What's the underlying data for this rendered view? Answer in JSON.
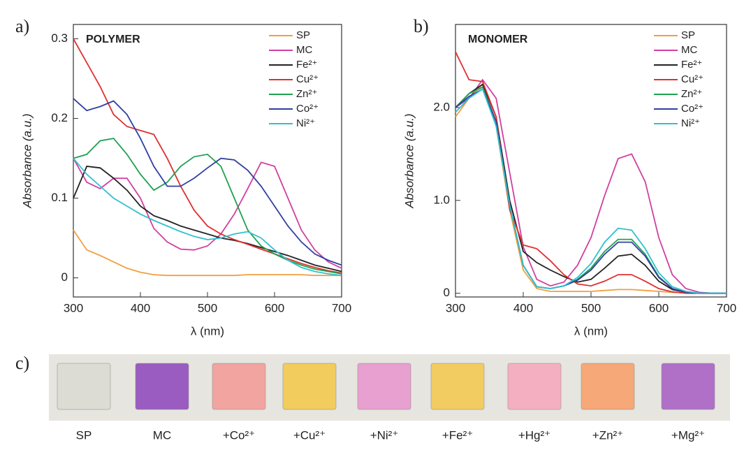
{
  "chart_data": [
    {
      "type": "line",
      "label": "a)",
      "title": "POLYMER",
      "x_label": "λ (nm)",
      "y_label": "Absorbance (a.u.)",
      "x": [
        300,
        320,
        340,
        360,
        380,
        400,
        420,
        440,
        460,
        480,
        500,
        520,
        540,
        560,
        580,
        600,
        620,
        640,
        660,
        680,
        700
      ],
      "xlim": [
        300,
        700
      ],
      "xticks": [
        300,
        400,
        500,
        600,
        700
      ],
      "ylim": [
        -0.024,
        0.318
      ],
      "yticks": [
        0,
        0.1,
        0.2,
        0.3
      ],
      "series": [
        {
          "name": "SP",
          "color": "#f0a040",
          "values": [
            0.06,
            0.035,
            0.028,
            0.02,
            0.012,
            0.007,
            0.004,
            0.003,
            0.003,
            0.003,
            0.003,
            0.003,
            0.003,
            0.004,
            0.004,
            0.004,
            0.004,
            0.004,
            0.003,
            0.003,
            0.003
          ]
        },
        {
          "name": "MC",
          "color": "#d040a0",
          "values": [
            0.15,
            0.12,
            0.112,
            0.125,
            0.125,
            0.1,
            0.062,
            0.045,
            0.036,
            0.035,
            0.04,
            0.055,
            0.08,
            0.112,
            0.145,
            0.14,
            0.1,
            0.06,
            0.035,
            0.02,
            0.012
          ]
        },
        {
          "name": "Fe²⁺",
          "color": "#222222",
          "values": [
            0.1,
            0.14,
            0.138,
            0.125,
            0.11,
            0.09,
            0.078,
            0.072,
            0.065,
            0.06,
            0.055,
            0.05,
            0.047,
            0.043,
            0.038,
            0.033,
            0.028,
            0.022,
            0.016,
            0.012,
            0.008
          ]
        },
        {
          "name": "Cu²⁺",
          "color": "#e03030",
          "values": [
            0.3,
            0.27,
            0.24,
            0.205,
            0.19,
            0.185,
            0.18,
            0.15,
            0.115,
            0.085,
            0.065,
            0.055,
            0.048,
            0.042,
            0.036,
            0.03,
            0.024,
            0.018,
            0.013,
            0.009,
            0.006
          ]
        },
        {
          "name": "Zn²⁺",
          "color": "#20a050",
          "values": [
            0.15,
            0.155,
            0.172,
            0.175,
            0.155,
            0.13,
            0.11,
            0.12,
            0.14,
            0.152,
            0.155,
            0.14,
            0.1,
            0.06,
            0.04,
            0.03,
            0.022,
            0.016,
            0.011,
            0.008,
            0.005
          ]
        },
        {
          "name": "Co²⁺",
          "color": "#3040a0",
          "values": [
            0.225,
            0.21,
            0.215,
            0.222,
            0.205,
            0.175,
            0.14,
            0.115,
            0.115,
            0.125,
            0.138,
            0.15,
            0.148,
            0.135,
            0.115,
            0.09,
            0.065,
            0.045,
            0.03,
            0.022,
            0.016
          ]
        },
        {
          "name": "Ni²⁺",
          "color": "#30c0d0",
          "values": [
            0.15,
            0.13,
            0.115,
            0.1,
            0.09,
            0.08,
            0.072,
            0.065,
            0.058,
            0.052,
            0.048,
            0.05,
            0.055,
            0.058,
            0.05,
            0.035,
            0.022,
            0.013,
            0.008,
            0.005,
            0.003
          ]
        }
      ]
    },
    {
      "type": "line",
      "label": "b)",
      "title": "MONOMER",
      "x_label": "λ (nm)",
      "y_label": "Absorbance (a.u.)",
      "x": [
        300,
        320,
        340,
        360,
        380,
        400,
        420,
        440,
        460,
        480,
        500,
        520,
        540,
        560,
        580,
        600,
        620,
        640,
        660,
        680,
        700
      ],
      "xlim": [
        300,
        700
      ],
      "xticks": [
        300,
        400,
        500,
        600,
        700
      ],
      "ylim": [
        -0.04,
        2.895
      ],
      "yticks": [
        0,
        {
          "value": 1,
          "label": "1.0"
        },
        {
          "value": 2,
          "label": "2.0"
        }
      ],
      "series": [
        {
          "name": "SP",
          "color": "#f0a040",
          "values": [
            1.9,
            2.1,
            2.25,
            1.8,
            0.9,
            0.25,
            0.05,
            0.02,
            0.02,
            0.02,
            0.02,
            0.03,
            0.04,
            0.04,
            0.03,
            0.02,
            0.01,
            0.005,
            0,
            0,
            0
          ]
        },
        {
          "name": "MC",
          "color": "#d040a0",
          "values": [
            2.0,
            2.1,
            2.3,
            2.1,
            1.3,
            0.5,
            0.15,
            0.08,
            0.12,
            0.3,
            0.6,
            1.05,
            1.45,
            1.5,
            1.2,
            0.6,
            0.2,
            0.05,
            0.01,
            0,
            0
          ]
        },
        {
          "name": "Fe²⁺",
          "color": "#222222",
          "values": [
            2.0,
            2.15,
            2.25,
            1.9,
            1.0,
            0.45,
            0.33,
            0.25,
            0.18,
            0.12,
            0.15,
            0.27,
            0.4,
            0.42,
            0.3,
            0.13,
            0.04,
            0.01,
            0,
            0,
            0
          ]
        },
        {
          "name": "Cu²⁺",
          "color": "#e03030",
          "values": [
            2.6,
            2.3,
            2.28,
            1.9,
            0.9,
            0.52,
            0.48,
            0.35,
            0.2,
            0.1,
            0.08,
            0.13,
            0.2,
            0.2,
            0.13,
            0.05,
            0.015,
            0,
            0,
            0,
            0
          ]
        },
        {
          "name": "Zn²⁺",
          "color": "#20a050",
          "values": [
            2.0,
            2.15,
            2.22,
            1.85,
            0.95,
            0.3,
            0.07,
            0.05,
            0.08,
            0.15,
            0.27,
            0.45,
            0.58,
            0.58,
            0.42,
            0.18,
            0.05,
            0.01,
            0,
            0,
            0
          ]
        },
        {
          "name": "Co²⁺",
          "color": "#3040a0",
          "values": [
            2.0,
            2.12,
            2.2,
            1.85,
            0.95,
            0.3,
            0.07,
            0.05,
            0.08,
            0.14,
            0.25,
            0.42,
            0.55,
            0.55,
            0.4,
            0.17,
            0.05,
            0.01,
            0,
            0,
            0
          ]
        },
        {
          "name": "Ni²⁺",
          "color": "#30c0d0",
          "values": [
            1.95,
            2.1,
            2.2,
            1.8,
            0.95,
            0.3,
            0.07,
            0.05,
            0.08,
            0.17,
            0.32,
            0.55,
            0.7,
            0.68,
            0.48,
            0.22,
            0.07,
            0.02,
            0,
            0,
            0
          ]
        }
      ]
    }
  ],
  "photo_strip": {
    "label": "c)",
    "samples": [
      {
        "label": "SP",
        "color": "#dcdcd4"
      },
      {
        "label": "MC",
        "color": "#9a5cc0"
      },
      {
        "label": "+Co²⁺",
        "color": "#f2a4a0"
      },
      {
        "label": "+Cu²⁺",
        "color": "#f2cc5c"
      },
      {
        "label": "+Ni²⁺",
        "color": "#e8a0d0"
      },
      {
        "label": "+Fe²⁺",
        "color": "#f2cc60"
      },
      {
        "label": "+Hg²⁺",
        "color": "#f4b0c0"
      },
      {
        "label": "+Zn²⁺",
        "color": "#f6a878"
      },
      {
        "label": "+Mg²⁺",
        "color": "#b070c8"
      }
    ]
  }
}
